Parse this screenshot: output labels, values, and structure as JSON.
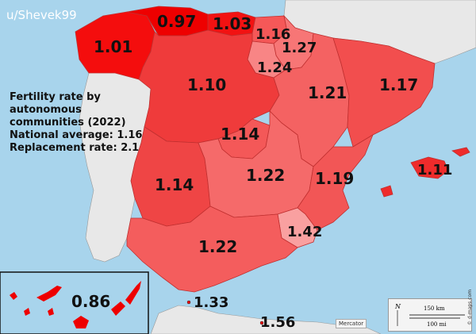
{
  "watermark": "u/Shevek99",
  "legend": {
    "title_lines": [
      "Fertility rate by",
      "autonomous",
      "communities (2022)"
    ],
    "national_label": "National average:",
    "national_value": "1.16",
    "replacement_label": "Replacement rate:",
    "replacement_value": "2.1"
  },
  "regions": [
    {
      "name": "Galicia",
      "value": "1.01",
      "color": "#f40d0d"
    },
    {
      "name": "Asturias",
      "value": "0.97",
      "color": "#ee0000"
    },
    {
      "name": "Cantabria",
      "value": "1.03",
      "color": "#f21212"
    },
    {
      "name": "Basque Country",
      "value": "1.16",
      "color": "#f55858"
    },
    {
      "name": "Navarre",
      "value": "1.27",
      "color": "#f77676"
    },
    {
      "name": "La Rioja",
      "value": "1.24",
      "color": "#f88585"
    },
    {
      "name": "Castile and León",
      "value": "1.10",
      "color": "#ef3b3b"
    },
    {
      "name": "Aragon",
      "value": "1.21",
      "color": "#f46262"
    },
    {
      "name": "Catalonia",
      "value": "1.17",
      "color": "#f24e4e"
    },
    {
      "name": "Madrid",
      "value": "1.14",
      "color": "#f45858"
    },
    {
      "name": "Extremadura",
      "value": "1.14",
      "color": "#ef4545"
    },
    {
      "name": "Castilla-La Mancha",
      "value": "1.22",
      "color": "#f56a6a"
    },
    {
      "name": "Valencia",
      "value": "1.19",
      "color": "#f25656"
    },
    {
      "name": "Balearic Islands",
      "value": "1.11",
      "color": "#ee2b2b"
    },
    {
      "name": "Murcia",
      "value": "1.42",
      "color": "#f9a0a0"
    },
    {
      "name": "Andalusia",
      "value": "1.22",
      "color": "#f45d5d"
    },
    {
      "name": "Canary Islands",
      "value": "0.86",
      "color": "#ee0000"
    },
    {
      "name": "Ceuta",
      "value": "1.33",
      "color": "#ee0000"
    },
    {
      "name": "Melilla",
      "value": "1.56",
      "color": "#ee0000"
    }
  ],
  "scale": {
    "km": "150 km",
    "mi": "100 mi",
    "north": "N"
  },
  "projection": "Mercator",
  "credit": "© d-maps.com",
  "colors": {
    "sea": "#a8d4ec",
    "neighbor": "#e8e8e8",
    "border": "#888888"
  }
}
